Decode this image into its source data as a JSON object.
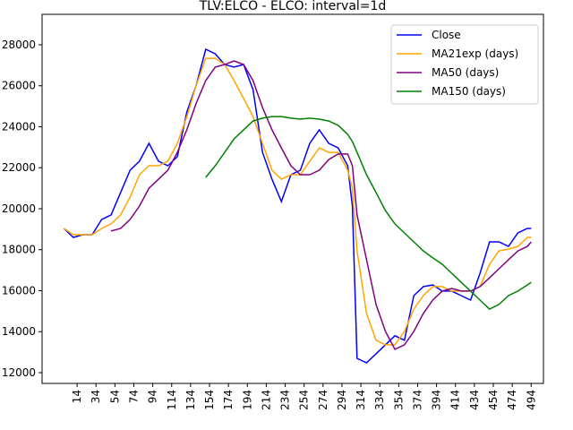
{
  "chart_data": {
    "type": "line",
    "title": "TLV:ELCO - ELCO: interval=1d",
    "x": [
      0,
      10,
      20,
      30,
      40,
      50,
      60,
      70,
      80,
      90,
      100,
      110,
      120,
      130,
      140,
      150,
      160,
      170,
      180,
      190,
      200,
      210,
      220,
      230,
      240,
      250,
      260,
      270,
      280,
      290,
      300,
      305,
      310,
      320,
      330,
      340,
      350,
      360,
      370,
      380,
      390,
      400,
      410,
      420,
      430,
      440,
      450,
      460,
      470,
      480,
      490,
      494
    ],
    "series": [
      {
        "name": "Close",
        "color": "#0000ff",
        "values": [
          19040,
          18600,
          18730,
          18730,
          19480,
          19700,
          20790,
          21880,
          22320,
          23190,
          22320,
          22100,
          22540,
          24720,
          26030,
          27780,
          27560,
          27040,
          26910,
          27040,
          25810,
          22750,
          21440,
          20350,
          21660,
          21880,
          23190,
          23850,
          23190,
          22970,
          22100,
          20130,
          12700,
          12480,
          12920,
          13360,
          13800,
          13580,
          15760,
          16200,
          16280,
          15980,
          15980,
          15760,
          15540,
          16850,
          18380,
          18380,
          18160,
          18820,
          19040,
          19040
        ]
      },
      {
        "name": "MA21exp (days)",
        "color": "#ffa500",
        "values": [
          19040,
          18730,
          18730,
          18730,
          19040,
          19260,
          19700,
          20570,
          21660,
          22100,
          22100,
          22320,
          23190,
          24500,
          26030,
          27340,
          27340,
          27040,
          26250,
          25380,
          24500,
          23190,
          21880,
          21440,
          21660,
          21660,
          22320,
          22970,
          22750,
          22750,
          21880,
          21000,
          17940,
          14890,
          13580,
          13360,
          13360,
          14010,
          15100,
          15760,
          16200,
          16200,
          15980,
          15980,
          15980,
          16200,
          17290,
          17940,
          18030,
          18160,
          18600,
          18600
        ]
      },
      {
        "name": "MA50 (days)",
        "color": "#800080",
        "values": [
          null,
          null,
          null,
          null,
          null,
          18910,
          19040,
          19480,
          20130,
          21000,
          21440,
          21880,
          22750,
          23850,
          25160,
          26250,
          26910,
          27040,
          27210,
          27040,
          26250,
          24940,
          23850,
          22970,
          22100,
          21660,
          21660,
          21880,
          22400,
          22670,
          22670,
          22100,
          19700,
          17510,
          15330,
          14010,
          13140,
          13360,
          14010,
          14890,
          15540,
          15980,
          16110,
          15980,
          15980,
          16200,
          16630,
          17070,
          17510,
          17940,
          18160,
          18380
        ]
      },
      {
        "name": "MA150 (days)",
        "color": "#008000",
        "values": [
          null,
          null,
          null,
          null,
          null,
          null,
          null,
          null,
          null,
          null,
          null,
          null,
          null,
          null,
          null,
          21530,
          22100,
          22750,
          23410,
          23850,
          24280,
          24420,
          24500,
          24500,
          24420,
          24370,
          24420,
          24370,
          24280,
          24070,
          23630,
          23280,
          22750,
          21660,
          20790,
          19910,
          19260,
          18820,
          18380,
          17940,
          17600,
          17290,
          16850,
          16410,
          15980,
          15540,
          15100,
          15330,
          15760,
          15980,
          16280,
          16410
        ]
      }
    ],
    "xlim": [
      -23,
      507
    ],
    "ylim": [
      11475,
      29486
    ],
    "xticks": [
      14,
      34,
      54,
      74,
      94,
      114,
      134,
      154,
      174,
      194,
      214,
      234,
      254,
      274,
      294,
      314,
      334,
      354,
      374,
      394,
      414,
      434,
      454,
      474,
      494
    ],
    "yticks": [
      12000,
      14000,
      16000,
      18000,
      20000,
      22000,
      24000,
      26000,
      28000
    ],
    "legend": "upper right"
  }
}
